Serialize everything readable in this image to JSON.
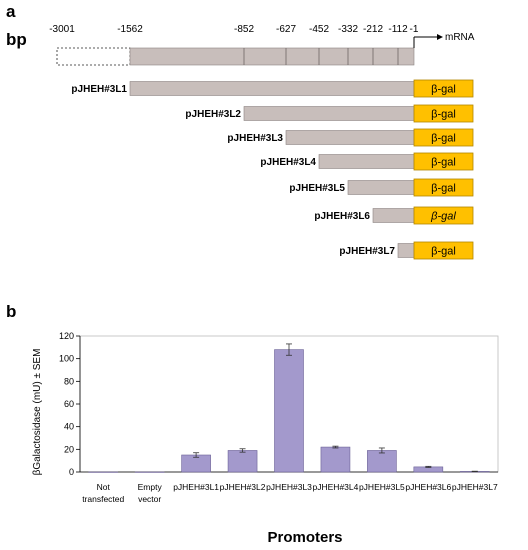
{
  "panel_a": {
    "letter": "a",
    "unit_label": "bp",
    "mrna_label": "mRNA",
    "positions": [
      "-3001",
      "-1562",
      "-852",
      "-627",
      "-452",
      "-332",
      "-212",
      "-112",
      "-1"
    ],
    "position_values": [
      -3001,
      -1562,
      -852,
      -627,
      -452,
      -332,
      -212,
      -112,
      -1
    ],
    "reporter_label": "β-gal",
    "colors": {
      "promoter": "#c8bebb",
      "reporter": "#ffc000",
      "reporter_border": "#b38600"
    },
    "constructs": [
      {
        "name": "pJHEH#3L1",
        "start": -1562
      },
      {
        "name": "pJHEH#3L2",
        "start": -852
      },
      {
        "name": "pJHEH#3L3",
        "start": -627
      },
      {
        "name": "pJHEH#3L4",
        "start": -452
      },
      {
        "name": "pJHEH#3L5",
        "start": -332
      },
      {
        "name": "pJHEH#3L6",
        "start": -212
      },
      {
        "name": "pJHEH#3L7",
        "start": -112
      }
    ]
  },
  "panel_b": {
    "letter": "b",
    "chart_data": {
      "type": "bar",
      "categories": [
        "Not transfected",
        "Empty vector",
        "pJHEH#3L1",
        "pJHEH#3L2",
        "pJHEH#3L3",
        "pJHEH#3L4",
        "pJHEH#3L5",
        "pJHEH#3L6",
        "pJHEH#3L7"
      ],
      "category_lines": [
        [
          "Not",
          "transfected"
        ],
        [
          "Empty",
          "vector"
        ],
        [
          "pJHEH#3L1"
        ],
        [
          "pJHEH#3L2"
        ],
        [
          "pJHEH#3L3"
        ],
        [
          "pJHEH#3L4"
        ],
        [
          "pJHEH#3L5"
        ],
        [
          "pJHEH#3L6"
        ],
        [
          "pJHEH#3L7"
        ]
      ],
      "values": [
        0,
        0,
        15,
        19,
        108,
        22,
        19,
        4.5,
        0.5
      ],
      "errors": [
        0,
        0,
        2,
        1.5,
        5,
        0.8,
        2.2,
        0.5,
        0.2
      ],
      "ylabel": "βGalactosidase (mU) ± SEM",
      "xlabel": "Promoters",
      "ylim": [
        0,
        120
      ],
      "yticks": [
        0,
        20,
        40,
        60,
        80,
        100,
        120
      ],
      "bar_color": "#a399cc",
      "grid": false
    }
  }
}
